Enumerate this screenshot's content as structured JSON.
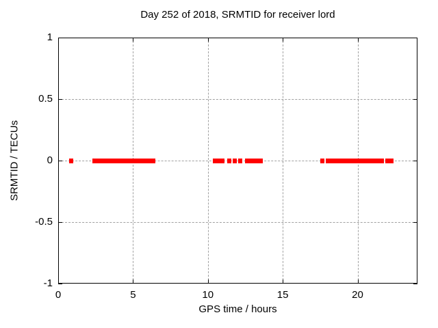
{
  "chart_data": {
    "type": "scatter",
    "title": "Day 252 of 2018, SRMTID for receiver lord",
    "xlabel": "GPS time / hours",
    "ylabel": "SRMTID / TECUs",
    "xlim": [
      0,
      24
    ],
    "ylim": [
      -1,
      1
    ],
    "x_ticks": [
      0,
      5,
      10,
      15,
      20
    ],
    "y_ticks": [
      -1,
      -0.5,
      0,
      0.5,
      1
    ],
    "grid": true,
    "legend": "none",
    "marker_shape": "filled-square",
    "marker_color": "#ff0000",
    "series": [
      {
        "name": "SRMTID",
        "value_tecus": 0,
        "segments_hours": [
          [
            0.75,
            1.0
          ],
          [
            2.3,
            6.5
          ],
          [
            10.33,
            10.47
          ],
          [
            10.6,
            11.11
          ],
          [
            11.28,
            11.5
          ],
          [
            11.66,
            11.9
          ],
          [
            12.02,
            12.21
          ],
          [
            12.48,
            13.67
          ],
          [
            17.52,
            17.78
          ],
          [
            17.87,
            21.76
          ],
          [
            21.87,
            22.4
          ]
        ]
      }
    ]
  },
  "colors": {
    "marker": "#ff0000",
    "grid": "#a0a0a0",
    "axis": "#000000",
    "background": "#ffffff"
  }
}
